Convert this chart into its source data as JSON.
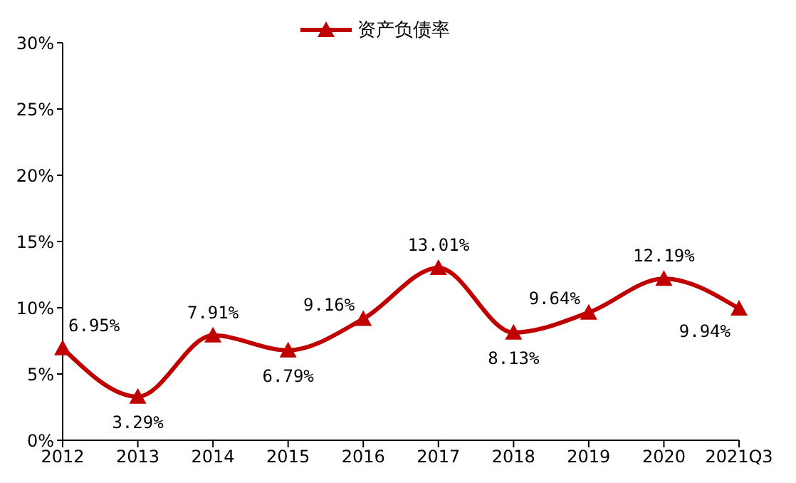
{
  "chart_data": {
    "type": "line",
    "categories": [
      "2012",
      "2013",
      "2014",
      "2015",
      "2016",
      "2017",
      "2018",
      "2019",
      "2020",
      "2021Q3"
    ],
    "series": [
      {
        "name": "资产负债率",
        "color": "#c00000",
        "values": [
          6.95,
          3.29,
          7.91,
          6.79,
          9.16,
          13.01,
          8.13,
          9.64,
          12.19,
          9.94
        ],
        "value_labels": [
          "6.95%",
          "3.29%",
          "7.91%",
          "6.79%",
          "9.16%",
          "13.01%",
          "8.13%",
          "9.64%",
          "12.19%",
          "9.94%"
        ]
      }
    ],
    "ylim": [
      0,
      30
    ],
    "yticks": [
      {
        "value": 0,
        "label": "0%"
      },
      {
        "value": 5,
        "label": "5%"
      },
      {
        "value": 10,
        "label": "10%"
      },
      {
        "value": 15,
        "label": "15%"
      },
      {
        "value": 20,
        "label": "20%"
      },
      {
        "value": 25,
        "label": "25%"
      },
      {
        "value": 30,
        "label": "30%"
      }
    ],
    "grid": false,
    "legend": "top",
    "marker": "triangle",
    "line_style": "solid"
  }
}
